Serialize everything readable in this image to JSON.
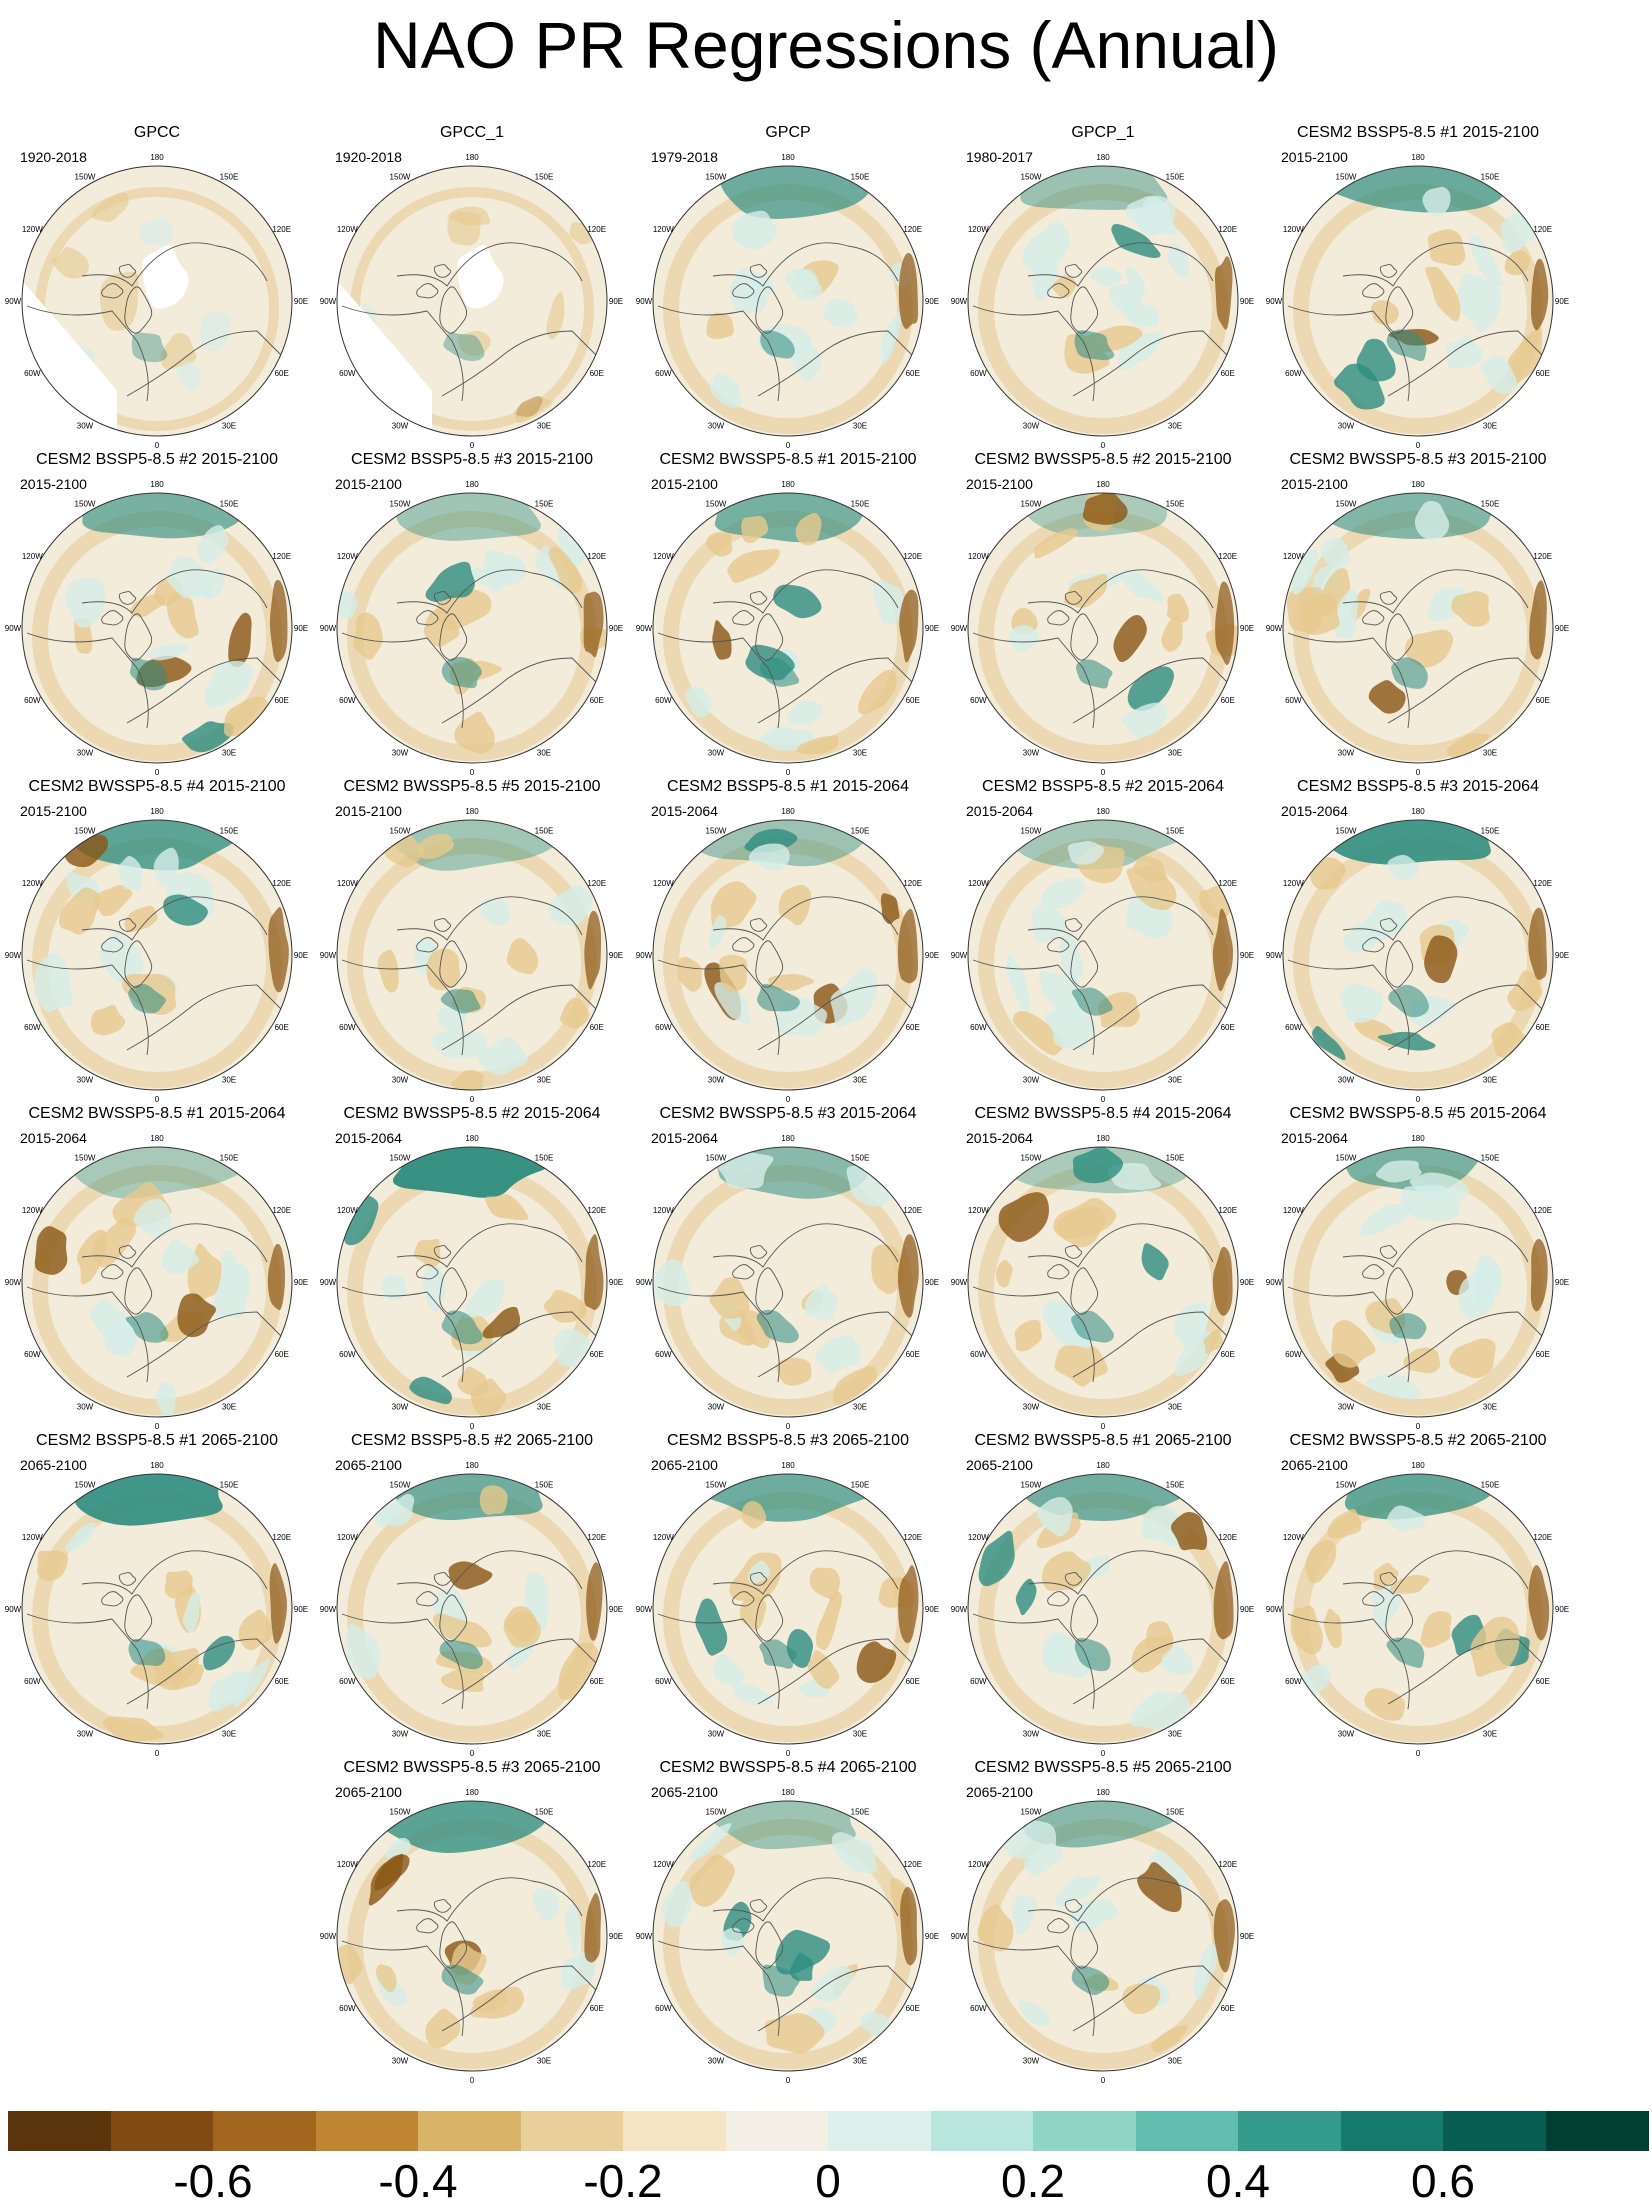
{
  "title": "NAO PR Regressions (Annual)",
  "lon_labels": [
    "180",
    "150E",
    "120E",
    "90E",
    "60E",
    "30E",
    "0",
    "30W",
    "60W",
    "90W",
    "120W",
    "150W"
  ],
  "panels": [
    {
      "title": "GPCC",
      "period": "1920-2018"
    },
    {
      "title": "GPCC_1",
      "period": "1920-2018"
    },
    {
      "title": "GPCP",
      "period": "1979-2018"
    },
    {
      "title": "GPCP_1",
      "period": "1980-2017"
    },
    {
      "title": "CESM2 BSSP5-8.5 #1 2015-2100",
      "period": "2015-2100"
    },
    {
      "title": "CESM2 BSSP5-8.5 #2 2015-2100",
      "period": "2015-2100"
    },
    {
      "title": "CESM2 BSSP5-8.5 #3 2015-2100",
      "period": "2015-2100"
    },
    {
      "title": "CESM2 BWSSP5-8.5 #1 2015-2100",
      "period": "2015-2100"
    },
    {
      "title": "CESM2 BWSSP5-8.5 #2 2015-2100",
      "period": "2015-2100"
    },
    {
      "title": "CESM2 BWSSP5-8.5 #3 2015-2100",
      "period": "2015-2100"
    },
    {
      "title": "CESM2 BWSSP5-8.5 #4 2015-2100",
      "period": "2015-2100"
    },
    {
      "title": "CESM2 BWSSP5-8.5 #5 2015-2100",
      "period": "2015-2100"
    },
    {
      "title": "CESM2 BSSP5-8.5 #1 2015-2064",
      "period": "2015-2064"
    },
    {
      "title": "CESM2 BSSP5-8.5 #2 2015-2064",
      "period": "2015-2064"
    },
    {
      "title": "CESM2 BSSP5-8.5 #3 2015-2064",
      "period": "2015-2064"
    },
    {
      "title": "CESM2 BWSSP5-8.5 #1 2015-2064",
      "period": "2015-2064"
    },
    {
      "title": "CESM2 BWSSP5-8.5 #2 2015-2064",
      "period": "2015-2064"
    },
    {
      "title": "CESM2 BWSSP5-8.5 #3 2015-2064",
      "period": "2015-2064"
    },
    {
      "title": "CESM2 BWSSP5-8.5 #4 2015-2064",
      "period": "2015-2064"
    },
    {
      "title": "CESM2 BWSSP5-8.5 #5 2015-2064",
      "period": "2015-2064"
    },
    {
      "title": "CESM2 BSSP5-8.5 #1 2065-2100",
      "period": "2065-2100"
    },
    {
      "title": "CESM2 BSSP5-8.5 #2 2065-2100",
      "period": "2065-2100"
    },
    {
      "title": "CESM2 BSSP5-8.5 #3 2065-2100",
      "period": "2065-2100"
    },
    {
      "title": "CESM2 BWSSP5-8.5 #1 2065-2100",
      "period": "2065-2100"
    },
    {
      "title": "CESM2 BWSSP5-8.5 #2 2065-2100",
      "period": "2065-2100"
    },
    {
      "title": "CESM2 BWSSP5-8.5 #3 2065-2100",
      "period": "2065-2100"
    },
    {
      "title": "CESM2 BWSSP5-8.5 #4 2065-2100",
      "period": "2065-2100"
    },
    {
      "title": "CESM2 BWSSP5-8.5 #5 2065-2100",
      "period": "2065-2100"
    }
  ],
  "colorbar": {
    "colors": [
      "#5a340a",
      "#804a12",
      "#a2661e",
      "#c08532",
      "#d9b468",
      "#e9d09a",
      "#f4e6c4",
      "#f3efe4",
      "#dcefea",
      "#b9e6dc",
      "#8ed5c6",
      "#62bdae",
      "#349a8c",
      "#167a6c",
      "#075e50",
      "#023f33"
    ],
    "tick_labels": [
      "-0.6",
      "-0.4",
      "-0.2",
      "0",
      "0.2",
      "0.4",
      "0.6"
    ]
  },
  "colors": {
    "dry_strong": "#8a5614",
    "dry": "#e6c98f",
    "neutral": "#f3ecdb",
    "wet": "#d6eee9",
    "wet_strong": "#2d8d80",
    "coast": "#555555"
  }
}
